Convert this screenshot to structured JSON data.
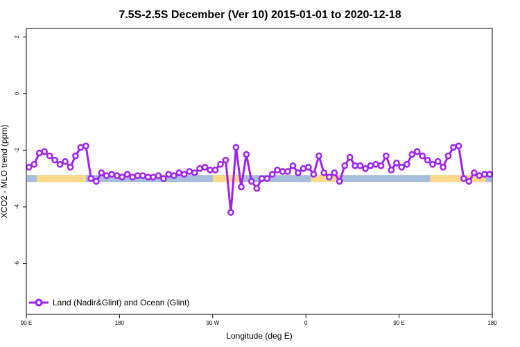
{
  "chart_data": {
    "type": "line",
    "title": "7.5S-2.5S December (Ver 10)   2015-01-01 to 2020-12-18",
    "xlabel": "Longitude (deg E)",
    "ylabel": "XCO2 - MLO trend (ppm)",
    "xlim": [
      -90,
      270
    ],
    "ylim": [
      -7.8,
      2.3
    ],
    "x_ticks": [
      {
        "value": -90,
        "label": "90 E"
      },
      {
        "value": -18,
        "label": "180"
      },
      {
        "value": 54,
        "label": "90 W"
      },
      {
        "value": 126,
        "label": "0"
      },
      {
        "value": 198,
        "label": "90 E"
      },
      {
        "value": 270,
        "label": "180"
      }
    ],
    "y_ticks": [
      2,
      0,
      -2,
      -4,
      -6
    ],
    "grid": false,
    "legend_position": "bottom-left",
    "series": [
      {
        "name": "Land (Nadir&Glint) and Ocean (Glint)",
        "color": "#a020f0",
        "x": [
          -88,
          -84,
          -80,
          -76,
          -72,
          -68,
          -64,
          -60,
          -56,
          -52,
          -48,
          -44,
          -40,
          -36,
          -32,
          -28,
          -24,
          -20,
          -16,
          -12,
          -8,
          -4,
          0,
          4,
          8,
          12,
          16,
          20,
          24,
          28,
          32,
          36,
          40,
          44,
          48,
          52,
          56,
          60,
          64,
          68,
          72,
          76,
          80,
          84,
          88,
          92,
          96,
          100,
          104,
          108,
          112,
          116,
          120,
          124,
          128,
          132,
          136,
          140,
          144,
          148,
          152,
          156,
          160,
          164,
          168,
          172,
          176,
          180,
          184,
          188,
          192,
          196,
          200,
          204,
          208,
          212,
          216,
          220,
          224,
          228,
          232,
          236,
          240,
          244,
          248,
          252,
          256,
          260,
          264,
          268
        ],
        "y": [
          -2.6,
          -2.5,
          -2.1,
          -2.05,
          -2.2,
          -2.35,
          -2.5,
          -2.4,
          -2.6,
          -2.2,
          -1.9,
          -1.85,
          -3.0,
          -3.1,
          -2.8,
          -2.9,
          -2.85,
          -2.9,
          -2.95,
          -2.85,
          -2.95,
          -2.9,
          -2.9,
          -2.95,
          -2.95,
          -2.9,
          -3.0,
          -2.85,
          -2.9,
          -2.8,
          -2.85,
          -2.75,
          -2.8,
          -2.65,
          -2.6,
          -2.7,
          -2.7,
          -2.5,
          -2.35,
          -4.2,
          -1.9,
          -3.3,
          -2.15,
          -3.1,
          -3.35,
          -3.0,
          -3.0,
          -2.85,
          -2.7,
          -2.75,
          -2.75,
          -2.55,
          -2.8,
          -2.65,
          -2.6,
          -2.85,
          -2.2,
          -2.8,
          -2.95,
          -2.8,
          -3.1,
          -2.55,
          -2.25,
          -2.55,
          -2.55,
          -2.65,
          -2.55,
          -2.5,
          -2.55,
          -2.2,
          -2.7,
          -2.45,
          -2.6,
          -2.5,
          -2.15,
          -2.05,
          -2.2,
          -2.35,
          -2.5,
          -2.4,
          -2.6,
          -2.2,
          -1.9,
          -1.85,
          -3.0,
          -3.1,
          -2.8,
          -2.9,
          -2.85,
          -2.85
        ]
      }
    ],
    "surface_strip": {
      "y": -3.0,
      "ocean_color": "#a6bddb",
      "land_color": "#fdd98b",
      "land_ranges": [
        [
          -82,
          -44
        ],
        [
          54,
          78
        ],
        [
          130,
          153
        ],
        [
          222,
          265
        ]
      ]
    }
  }
}
